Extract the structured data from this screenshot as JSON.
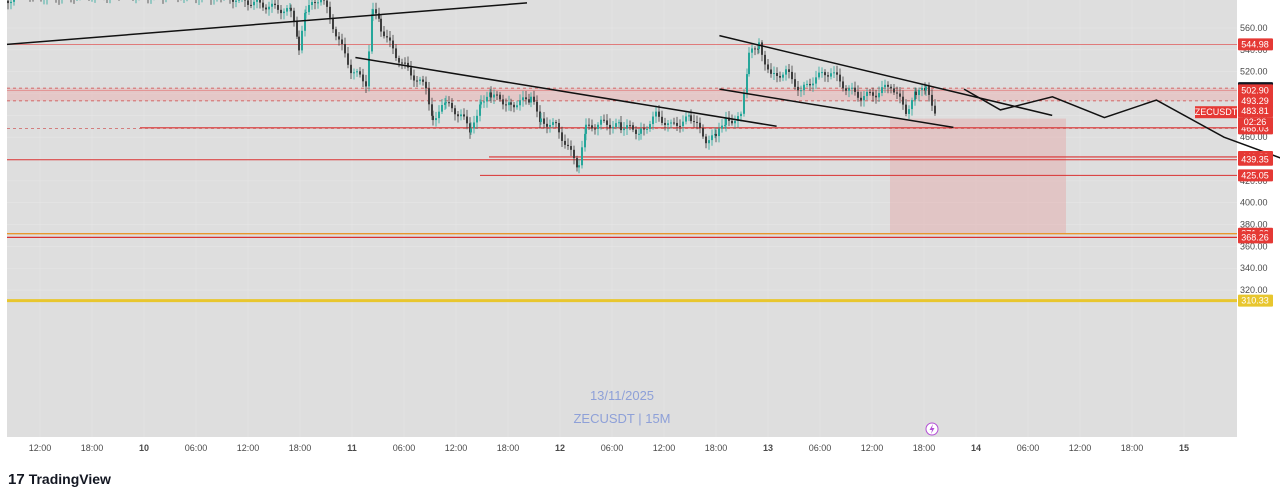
{
  "chart_data": {
    "type": "candlestick",
    "symbol": "ZECUSDT",
    "watermark_date": "13/11/2025",
    "watermark_symbol": "ZECUSDT | 15M",
    "y_ticks": [
      560,
      540,
      520,
      500,
      480,
      460,
      440,
      420,
      400,
      380,
      360,
      340,
      320
    ],
    "y_range": [
      310,
      585
    ],
    "x_ticks": [
      "12:00",
      "18:00",
      "10",
      "06:00",
      "12:00",
      "18:00",
      "11",
      "06:00",
      "12:00",
      "18:00",
      "12",
      "06:00",
      "12:00",
      "18:00",
      "13",
      "06:00",
      "12:00",
      "18:00",
      "14",
      "06:00",
      "12:00",
      "18:00",
      "15"
    ],
    "price_levels": [
      {
        "label": "544.98",
        "value": 544.98
      },
      {
        "label": "504.91",
        "value": 504.91
      },
      {
        "label": "502.90",
        "value": 502.9
      },
      {
        "label": "493.29",
        "value": 493.29
      },
      {
        "label": "483.81",
        "value": 483.81
      },
      {
        "label": "468.59",
        "value": 468.59
      },
      {
        "label": "468.03",
        "value": 468.03
      },
      {
        "label": "441.89",
        "value": 441.89
      },
      {
        "label": "439.35",
        "value": 439.35
      },
      {
        "label": "425.05",
        "value": 425.05
      },
      {
        "label": "371.63",
        "value": 371.63
      },
      {
        "label": "368.26",
        "value": 368.26
      },
      {
        "label": "310.33",
        "value": 310.33
      }
    ],
    "current_price": {
      "symbol": "ZECUSDT",
      "value": 483.81,
      "countdown": "02:26"
    },
    "projection_path": [
      [
        17.0,
        504
      ],
      [
        17.7,
        485
      ],
      [
        18.7,
        497
      ],
      [
        19.7,
        478
      ],
      [
        20.7,
        494
      ],
      [
        22.0,
        460
      ],
      [
        23.6,
        432
      ],
      [
        25.0,
        457
      ],
      [
        26.2,
        428
      ],
      [
        27.6,
        458
      ],
      [
        28.3,
        370
      ]
    ],
    "trend_lines": [
      {
        "name": "upper-long",
        "from": [
          0,
          545
        ],
        "to": [
          10,
          583
        ]
      },
      {
        "name": "mid-descending",
        "from": [
          6.7,
          533
        ],
        "to": [
          14.8,
          470
        ]
      },
      {
        "name": "channel-upper",
        "from": [
          13.7,
          553
        ],
        "to": [
          20.1,
          480
        ]
      },
      {
        "name": "channel-lower",
        "from": [
          13.7,
          504
        ],
        "to": [
          18.2,
          469
        ]
      }
    ],
    "target_zone": {
      "from_value": 477,
      "to_value": 371.63
    },
    "resistance_band": {
      "from_value": 504.91,
      "to_value": 493.29
    }
  },
  "branding": {
    "name": "TradingView"
  }
}
